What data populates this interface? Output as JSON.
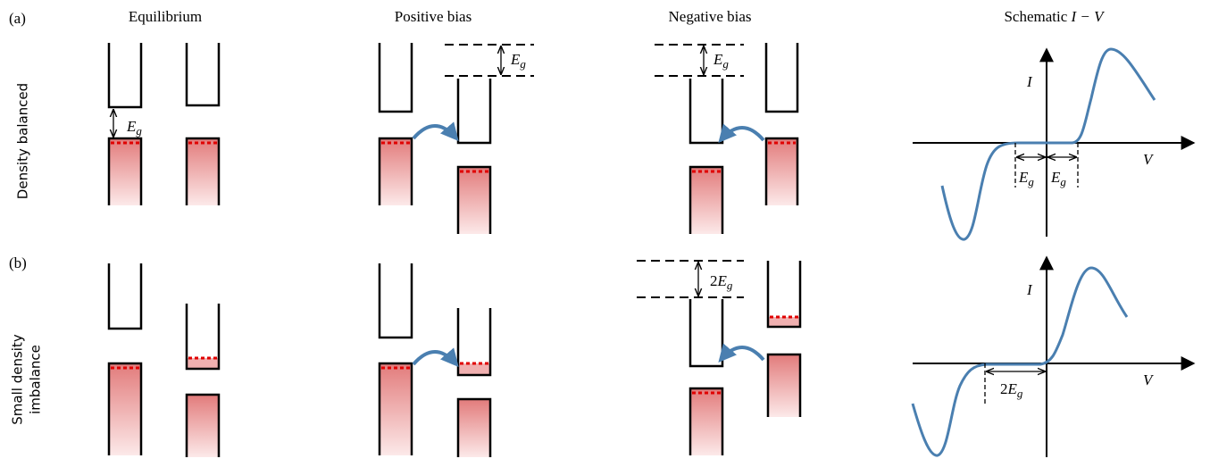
{
  "rows": [
    {
      "tag": "(a)",
      "label": [
        "Density balanced"
      ]
    },
    {
      "tag": "(b)",
      "label": [
        "Small density",
        "imbalance"
      ]
    }
  ],
  "columns": [
    "Equilibrium",
    "Positive bias",
    "Negative bias"
  ],
  "iv_title": {
    "text": "Schematic",
    "math": "I − V"
  },
  "gap_labels": [
    {
      "main": "E",
      "sub": "g"
    },
    {
      "main": "E",
      "sub": "g"
    },
    {
      "main": "E",
      "sub": "g"
    },
    {
      "main": "E",
      "sub": "g"
    },
    {
      "main": "E",
      "sub": "g"
    },
    {
      "prefix": "2",
      "main": "E",
      "sub": "g"
    },
    {
      "prefix": "2",
      "main": "E",
      "sub": "g"
    }
  ],
  "plots": [
    {
      "y_label": "I",
      "x_label": "V"
    },
    {
      "y_label": "I",
      "x_label": "V"
    }
  ]
}
